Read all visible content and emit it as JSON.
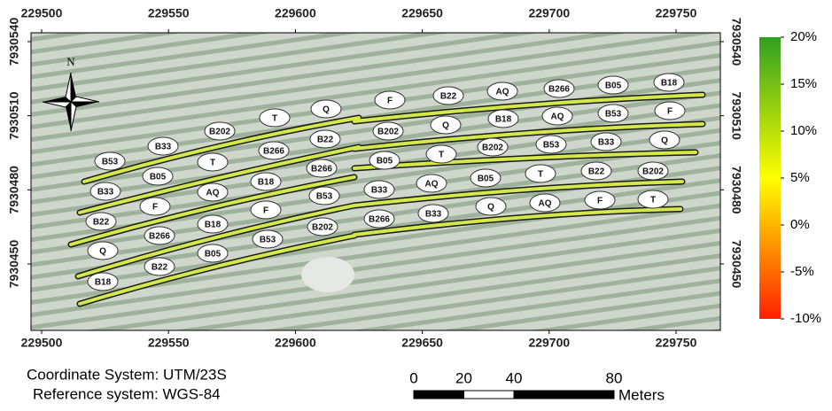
{
  "map": {
    "x_ticks": [
      229500,
      229550,
      229600,
      229650,
      229700,
      229750
    ],
    "y_ticks": [
      7930540,
      7930510,
      7930480,
      7930450
    ],
    "north": "N",
    "field_labels": [
      "Q",
      "T",
      "B202",
      "B33",
      "B53",
      "B22",
      "B266",
      "T",
      "B05",
      "B33",
      "B266",
      "B18",
      "AQ",
      "F",
      "B22",
      "B53",
      "F",
      "B18",
      "B266",
      "Q",
      "B202",
      "B53",
      "B05",
      "B22",
      "B18",
      "F",
      "B22",
      "AQ",
      "B266",
      "B05",
      "B18",
      "B202",
      "Q",
      "B18",
      "AQ",
      "B53",
      "F",
      "B05",
      "T",
      "B202",
      "B53",
      "B33",
      "Q",
      "B33",
      "AQ",
      "B05",
      "T",
      "B22",
      "B202",
      "B266",
      "B33",
      "Q",
      "AQ",
      "F",
      "T"
    ]
  },
  "colorbar": {
    "clim": [
      -10,
      20
    ],
    "colors": [
      "#ff2000",
      "#ffff00",
      "#30a020"
    ],
    "ticks": [
      {
        "value": 20,
        "label": "20%"
      },
      {
        "value": 15,
        "label": "15%"
      },
      {
        "value": 10,
        "label": "10%"
      },
      {
        "value": 5,
        "label": "5%"
      },
      {
        "value": 0,
        "label": "0%"
      },
      {
        "value": -5,
        "label": "-5%"
      },
      {
        "value": -10,
        "label": "-10%"
      }
    ]
  },
  "footer": {
    "coordinate_system": "Coordinate System: UTM/23S",
    "reference_system": "Reference system: WGS-84"
  },
  "scale_bar": {
    "ticks": [
      0,
      20,
      40,
      80
    ],
    "unit": "Meters"
  }
}
